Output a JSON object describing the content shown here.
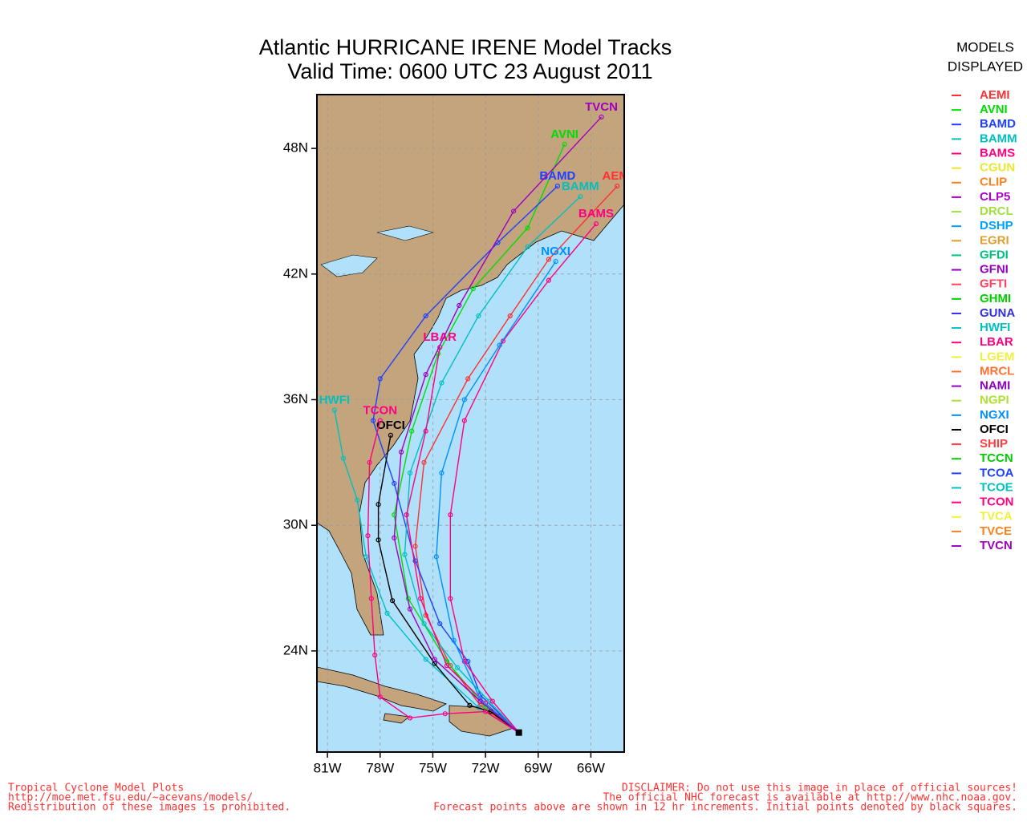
{
  "map": {
    "title": [
      "Atlantic HURRICANE IRENE Model Tracks",
      "Valid Time: 0600 UTC 23 August 2011"
    ],
    "legend_title": [
      "MODELS",
      "DISPLAYED"
    ],
    "xlim": [
      -81.6,
      -64.1
    ],
    "ylim": [
      19.17,
      50.57
    ],
    "xticks": [
      {
        "value": -81,
        "label": "81W"
      },
      {
        "value": -78,
        "label": "78W"
      },
      {
        "value": -75,
        "label": "75W"
      },
      {
        "value": -72,
        "label": "72W"
      },
      {
        "value": -69,
        "label": "69W"
      },
      {
        "value": -66,
        "label": "66W"
      }
    ],
    "yticks": [
      {
        "value": 24,
        "label": "24N"
      },
      {
        "value": 30,
        "label": "30N"
      },
      {
        "value": 36,
        "label": "36N"
      },
      {
        "value": 42,
        "label": "42N"
      },
      {
        "value": 48,
        "label": "48N"
      }
    ],
    "grid": true,
    "models": [
      {
        "name": "AEMI",
        "color": "#ff3030",
        "lat": [
          20.1,
          21.4,
          23.3,
          25.7,
          29.0,
          33.0,
          37.0,
          40.0,
          42.7,
          46.2
        ],
        "lon": [
          -70.1,
          -72.3,
          -74.0,
          -75.4,
          -76.0,
          -75.5,
          -73.0,
          -70.6,
          -68.4,
          -64.5
        ]
      },
      {
        "name": "AVNI",
        "color": "#00dd00",
        "lat": [
          20.1,
          21.3,
          23.5,
          26.5,
          30.5,
          34.5,
          38.2,
          41.3,
          44.2,
          48.2
        ],
        "lon": [
          -70.1,
          -72.0,
          -74.2,
          -76.4,
          -77.2,
          -76.2,
          -74.7,
          -72.7,
          -69.6,
          -67.5
        ]
      },
      {
        "name": "BAMD",
        "color": "#2040ff",
        "lat": [
          20.1,
          21.9,
          23.5,
          25.3,
          28.3,
          32.0,
          35.0,
          37.0,
          40.0,
          43.5,
          46.2
        ],
        "lon": [
          -70.1,
          -72.3,
          -73.0,
          -74.6,
          -76.0,
          -77.2,
          -78.4,
          -78.0,
          -75.4,
          -71.3,
          -67.9
        ]
      },
      {
        "name": "BAMM",
        "color": "#00c0c0",
        "lat": [
          20.1,
          21.6,
          23.2,
          25.3,
          28.6,
          32.5,
          36.8,
          40.0,
          43.3,
          45.7
        ],
        "lon": [
          -70.1,
          -71.8,
          -73.6,
          -75.5,
          -76.6,
          -76.3,
          -74.5,
          -72.4,
          -69.6,
          -66.6
        ]
      },
      {
        "name": "BAMS",
        "color": "#ff0080",
        "lat": [
          20.1,
          21.6,
          23.5,
          26.5,
          30.5,
          35.0,
          38.8,
          41.7,
          44.4
        ],
        "lon": [
          -70.1,
          -71.6,
          -73.2,
          -74.0,
          -74.0,
          -73.2,
          -71.0,
          -68.4,
          -65.7
        ]
      },
      {
        "name": "CGUN",
        "color": "#e8e830"
      },
      {
        "name": "CLIP",
        "color": "#ff8020"
      },
      {
        "name": "CLP5",
        "color": "#b000d0"
      },
      {
        "name": "DRCL",
        "color": "#a0e040"
      },
      {
        "name": "DSHP",
        "color": "#00a0ff"
      },
      {
        "name": "EGRI",
        "color": "#e0a030"
      },
      {
        "name": "GFDI",
        "color": "#00c080"
      },
      {
        "name": "GFNI",
        "color": "#9000c0"
      },
      {
        "name": "GFTI",
        "color": "#ff4060"
      },
      {
        "name": "GHMI",
        "color": "#00d000"
      },
      {
        "name": "GUNA",
        "color": "#3030e0"
      },
      {
        "name": "HWFI",
        "color": "#00c0c0",
        "lat": [
          20.1,
          21.3,
          23.6,
          25.8,
          28.5,
          31.2,
          33.2,
          35.5
        ],
        "lon": [
          -70.1,
          -72.4,
          -75.4,
          -77.6,
          -78.8,
          -79.3,
          -80.1,
          -80.6
        ]
      },
      {
        "name": "LBAR",
        "color": "#ff0080",
        "lat": [
          20.1,
          21.5,
          23.3,
          26.5,
          30.5,
          34.5,
          38.5
        ],
        "lon": [
          -70.1,
          -72.0,
          -74.2,
          -75.7,
          -76.5,
          -75.4,
          -74.6
        ]
      },
      {
        "name": "LGEM",
        "color": "#f0f040"
      },
      {
        "name": "MRCL",
        "color": "#ff7030"
      },
      {
        "name": "NAMI",
        "color": "#9000c0"
      },
      {
        "name": "NGPI",
        "color": "#b0e030"
      },
      {
        "name": "NGXI",
        "color": "#0090ff",
        "lat": [
          20.1,
          21.7,
          24.5,
          28.5,
          32.5,
          36.0,
          38.6,
          42.6
        ],
        "lon": [
          -70.1,
          -72.3,
          -73.8,
          -74.8,
          -74.5,
          -73.2,
          -71.2,
          -68.0
        ]
      },
      {
        "name": "OFCI",
        "color": "#000000",
        "lat": [
          20.1,
          21.1,
          21.4,
          23.4,
          26.4,
          29.3,
          31.0,
          34.3
        ],
        "lon": [
          -70.1,
          -71.7,
          -72.9,
          -74.9,
          -77.3,
          -78.1,
          -78.1,
          -77.4
        ]
      },
      {
        "name": "SHIP",
        "color": "#ff4040"
      },
      {
        "name": "TCCN",
        "color": "#00cc00"
      },
      {
        "name": "TCOA",
        "color": "#2040ff"
      },
      {
        "name": "TCOE",
        "color": "#00c0c0"
      },
      {
        "name": "TCON",
        "color": "#ff0080",
        "lat": [
          20.1,
          21.1,
          21.0,
          20.8,
          21.8,
          23.8,
          26.5,
          29.5,
          33.0,
          35.0
        ],
        "lon": [
          -70.1,
          -72.0,
          -74.3,
          -76.3,
          -78.0,
          -78.3,
          -78.5,
          -78.7,
          -78.6,
          -78.0
        ]
      },
      {
        "name": "TVCA",
        "color": "#f0f040"
      },
      {
        "name": "TVCE",
        "color": "#ff8020"
      },
      {
        "name": "TVCN",
        "color": "#a000c0",
        "lat": [
          20.1,
          21.6,
          23.6,
          26.0,
          29.4,
          33.5,
          37.2,
          40.5,
          45.0,
          49.5
        ],
        "lon": [
          -70.1,
          -72.3,
          -74.9,
          -76.3,
          -77.2,
          -76.8,
          -75.4,
          -73.5,
          -70.4,
          -65.4
        ]
      }
    ],
    "footer_left": [
      "Tropical Cyclone Model Plots",
      "http://moe.met.fsu.edu/~acevans/models/",
      "Redistribution of these images is prohibited."
    ],
    "footer_right": [
      "DISCLAIMER: Do not use this image in place of official sources!",
      "The official NHC forecast is available at http://www.nhc.noaa.gov.",
      "Forecast points above are shown in 12 hr increments. Initial points denoted by black squares."
    ]
  }
}
